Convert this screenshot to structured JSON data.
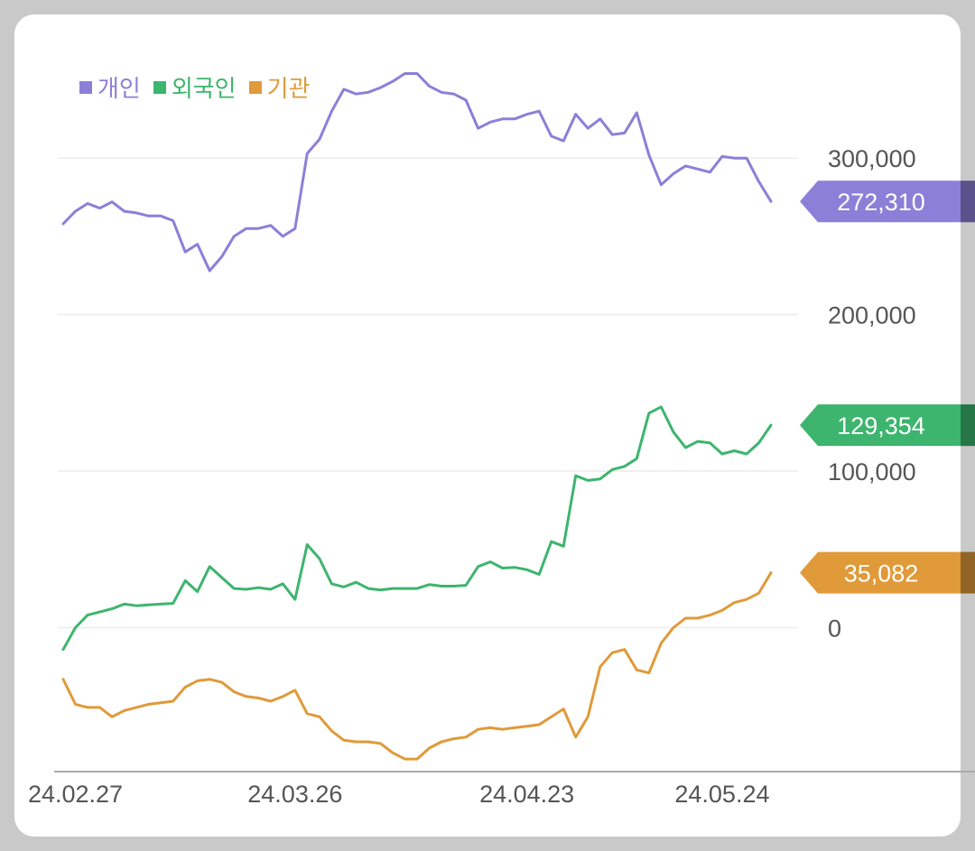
{
  "chart_data": {
    "type": "line",
    "title": "",
    "xlabel": "",
    "ylabel": "",
    "ylim": [
      -92000,
      352000
    ],
    "y_ticks": [
      0,
      100000,
      200000,
      300000
    ],
    "y_tick_labels": [
      "0",
      "100,000",
      "200,000",
      "300,000"
    ],
    "x_tick_labels": [
      {
        "index": 1,
        "label": "24.02.27"
      },
      {
        "index": 19,
        "label": "24.03.26"
      },
      {
        "index": 38,
        "label": "24.04.23"
      },
      {
        "index": 54,
        "label": "24.05.24"
      }
    ],
    "legend_position": "top-left",
    "series": [
      {
        "name": "개인",
        "color": "#8c7fd8",
        "last_label": "272,310",
        "values": [
          258000,
          266000,
          271000,
          268000,
          272000,
          266000,
          265000,
          263000,
          263000,
          260000,
          240000,
          245000,
          228000,
          237000,
          250000,
          255000,
          255000,
          257000,
          250000,
          255000,
          303000,
          312000,
          330000,
          344000,
          341000,
          342000,
          345000,
          349000,
          354000,
          354000,
          346000,
          342000,
          341000,
          337000,
          319000,
          323000,
          325000,
          325000,
          328000,
          330000,
          314000,
          311000,
          328000,
          319000,
          325000,
          315000,
          316000,
          329000,
          302000,
          283000,
          290000,
          295000,
          293000,
          291000,
          301000,
          300000,
          300000,
          285000,
          272310
        ]
      },
      {
        "name": "외국인",
        "color": "#3db56e",
        "last_label": "129,354",
        "values": [
          -14000,
          0,
          8000,
          10000,
          12000,
          15000,
          14000,
          14500,
          15000,
          15500,
          30000,
          23000,
          39000,
          32000,
          25000,
          24500,
          25500,
          24500,
          28000,
          18000,
          53000,
          44000,
          28000,
          26000,
          29000,
          25000,
          24000,
          25000,
          25000,
          25000,
          27500,
          26500,
          26500,
          27000,
          39000,
          42000,
          38000,
          38500,
          37000,
          34000,
          55000,
          52000,
          97000,
          94000,
          95000,
          101000,
          103000,
          108000,
          137000,
          141000,
          125000,
          115000,
          119000,
          118000,
          111000,
          113000,
          111000,
          118000,
          129354
        ]
      },
      {
        "name": "기관",
        "color": "#e09a3a",
        "last_label": "35,082",
        "values": [
          -33000,
          -49000,
          -51000,
          -51000,
          -57000,
          -53000,
          -51000,
          -49000,
          -48000,
          -47000,
          -38000,
          -34000,
          -33000,
          -35000,
          -41000,
          -44000,
          -45000,
          -47000,
          -44000,
          -40000,
          -55000,
          -57000,
          -66000,
          -72000,
          -73000,
          -73000,
          -74000,
          -80000,
          -84000,
          -84000,
          -77000,
          -73000,
          -71000,
          -70000,
          -65000,
          -64000,
          -65000,
          -64000,
          -63000,
          -62000,
          -57000,
          -52000,
          -70000,
          -57000,
          -25000,
          -16000,
          -14000,
          -27000,
          -29000,
          -10000,
          0,
          6000,
          6000,
          8000,
          11000,
          16000,
          18000,
          22000,
          35082
        ]
      }
    ]
  }
}
